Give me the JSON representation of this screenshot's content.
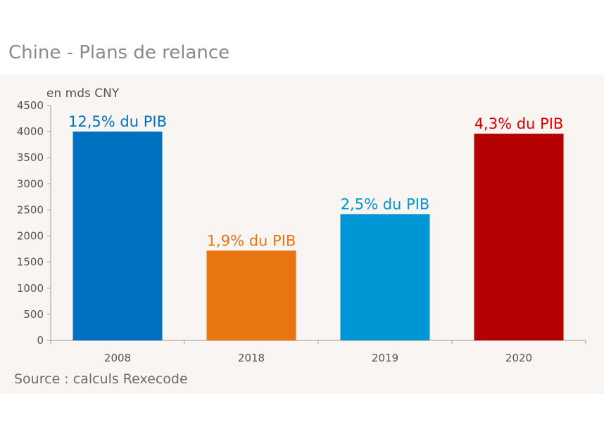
{
  "title": "Chine - Plans de relance",
  "source": "Source : calculs Rexecode",
  "chart_data": {
    "type": "bar",
    "title": "Chine - Plans de relance",
    "ylabel": "en mds CNY",
    "xlabel": "",
    "categories": [
      "2008",
      "2018",
      "2019",
      "2020"
    ],
    "values": [
      4000,
      1720,
      2420,
      3960
    ],
    "data_labels": [
      "12,5% du PIB",
      "1,9% du PIB",
      "2,5% du PIB",
      "4,3% du PIB"
    ],
    "colors": [
      "#0070c0",
      "#e87511",
      "#0096d6",
      "#b50000"
    ],
    "label_colors": [
      "#0070c0",
      "#e87511",
      "#0096d6",
      "#e00000"
    ],
    "ylim": [
      0,
      4500
    ],
    "yticks": [
      0,
      500,
      1000,
      1500,
      2000,
      2500,
      3000,
      3500,
      4000,
      4500
    ],
    "grid": false,
    "legend": "none"
  },
  "colors": {
    "panel_background": "#f8f5f2",
    "axis": "#9a9a9a",
    "title": "#8a8a8a"
  }
}
